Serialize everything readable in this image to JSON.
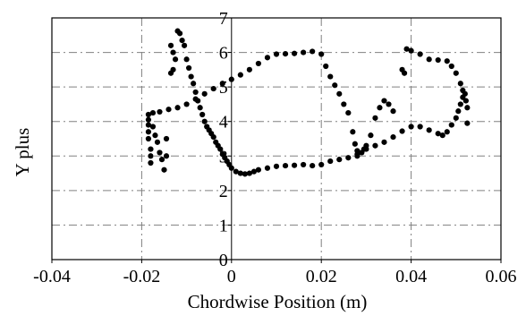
{
  "chart_data": {
    "type": "scatter",
    "title": "",
    "xlabel": "Chordwise Position (m)",
    "ylabel": "Y plus",
    "xlim": [
      -0.04,
      0.06
    ],
    "ylim": [
      0,
      7
    ],
    "x_ticks": [
      "-0.04",
      "-0.02",
      "0",
      "0.02",
      "0.04",
      "0.06"
    ],
    "y_ticks": [
      "0",
      "1",
      "2",
      "3",
      "4",
      "5",
      "6",
      "7"
    ],
    "grid": "dash-dot",
    "legend": "none",
    "marker_color": "#000000",
    "series": [
      {
        "values": [
          [
            -0.0185,
            4.2
          ],
          [
            -0.0175,
            4.25
          ],
          [
            -0.016,
            4.28
          ],
          [
            -0.014,
            4.35
          ],
          [
            -0.012,
            4.4
          ],
          [
            -0.01,
            4.5
          ],
          [
            -0.008,
            4.65
          ],
          [
            -0.006,
            4.8
          ],
          [
            -0.004,
            4.95
          ],
          [
            -0.002,
            5.1
          ],
          [
            0.0,
            5.22
          ],
          [
            0.002,
            5.35
          ],
          [
            0.004,
            5.5
          ],
          [
            0.006,
            5.68
          ],
          [
            0.008,
            5.85
          ],
          [
            0.01,
            5.95
          ],
          [
            0.012,
            5.96
          ],
          [
            0.014,
            5.97
          ],
          [
            0.016,
            6.0
          ],
          [
            0.018,
            6.03
          ],
          [
            0.02,
            5.95
          ],
          [
            0.021,
            5.6
          ],
          [
            0.022,
            5.3
          ],
          [
            0.023,
            5.05
          ],
          [
            0.024,
            4.8
          ],
          [
            0.025,
            4.5
          ],
          [
            0.026,
            4.25
          ],
          [
            0.027,
            3.7
          ],
          [
            0.0275,
            3.35
          ],
          [
            0.028,
            3.15
          ],
          [
            0.028,
            3.05
          ],
          [
            0.029,
            3.1
          ],
          [
            0.03,
            3.2
          ],
          [
            0.032,
            3.3
          ],
          [
            0.034,
            3.4
          ],
          [
            0.036,
            3.55
          ],
          [
            0.038,
            3.72
          ],
          [
            0.04,
            3.85
          ],
          [
            0.042,
            3.85
          ],
          [
            0.044,
            3.75
          ],
          [
            0.046,
            3.65
          ],
          [
            0.047,
            3.6
          ],
          [
            0.048,
            3.7
          ],
          [
            0.049,
            3.9
          ],
          [
            0.05,
            4.1
          ],
          [
            0.0505,
            4.3
          ],
          [
            0.051,
            4.5
          ],
          [
            0.0515,
            4.7
          ],
          [
            0.052,
            4.8
          ],
          [
            0.0522,
            4.6
          ],
          [
            0.0525,
            4.4
          ],
          [
            0.0525,
            3.95
          ],
          [
            0.0515,
            4.9
          ],
          [
            0.051,
            5.1
          ],
          [
            0.05,
            5.4
          ],
          [
            0.049,
            5.6
          ],
          [
            0.048,
            5.75
          ],
          [
            0.046,
            5.78
          ],
          [
            0.044,
            5.8
          ],
          [
            0.042,
            5.95
          ],
          [
            0.04,
            6.05
          ],
          [
            0.039,
            6.1
          ],
          [
            0.038,
            5.5
          ],
          [
            0.0385,
            5.4
          ],
          [
            0.036,
            4.3
          ],
          [
            0.035,
            4.5
          ],
          [
            0.034,
            4.6
          ],
          [
            0.033,
            4.4
          ],
          [
            0.032,
            4.1
          ],
          [
            0.031,
            3.6
          ],
          [
            0.03,
            3.3
          ],
          [
            0.0295,
            3.2
          ],
          [
            -0.012,
            6.62
          ],
          [
            -0.0115,
            6.55
          ],
          [
            -0.011,
            6.35
          ],
          [
            -0.0105,
            6.2
          ],
          [
            -0.0135,
            6.2
          ],
          [
            -0.013,
            6.0
          ],
          [
            -0.0125,
            5.8
          ],
          [
            -0.01,
            5.8
          ],
          [
            -0.0095,
            5.55
          ],
          [
            -0.009,
            5.3
          ],
          [
            -0.0085,
            5.1
          ],
          [
            -0.008,
            4.85
          ],
          [
            -0.0075,
            4.6
          ],
          [
            -0.007,
            4.4
          ],
          [
            -0.0065,
            4.2
          ],
          [
            -0.006,
            4.0
          ],
          [
            -0.0055,
            3.85
          ],
          [
            -0.005,
            3.75
          ],
          [
            -0.0045,
            3.65
          ],
          [
            -0.004,
            3.55
          ],
          [
            -0.0035,
            3.4
          ],
          [
            -0.003,
            3.3
          ],
          [
            -0.0025,
            3.2
          ],
          [
            -0.002,
            3.05
          ],
          [
            -0.0015,
            2.95
          ],
          [
            -0.001,
            2.85
          ],
          [
            -0.0005,
            2.75
          ],
          [
            0.0,
            2.65
          ],
          [
            0.001,
            2.55
          ],
          [
            0.002,
            2.5
          ],
          [
            0.003,
            2.48
          ],
          [
            0.004,
            2.5
          ],
          [
            0.005,
            2.55
          ],
          [
            0.006,
            2.6
          ],
          [
            0.008,
            2.65
          ],
          [
            0.01,
            2.7
          ],
          [
            0.012,
            2.72
          ],
          [
            0.014,
            2.73
          ],
          [
            0.016,
            2.75
          ],
          [
            0.018,
            2.72
          ],
          [
            0.02,
            2.75
          ],
          [
            0.022,
            2.85
          ],
          [
            0.024,
            2.9
          ],
          [
            0.026,
            2.95
          ],
          [
            0.028,
            3.0
          ],
          [
            -0.0185,
            3.5
          ],
          [
            -0.0185,
            3.7
          ],
          [
            -0.0185,
            3.9
          ],
          [
            -0.0185,
            4.05
          ],
          [
            -0.018,
            3.2
          ],
          [
            -0.018,
            3.0
          ],
          [
            -0.018,
            2.8
          ],
          [
            -0.0175,
            3.85
          ],
          [
            -0.017,
            3.6
          ],
          [
            -0.0165,
            3.4
          ],
          [
            -0.016,
            3.1
          ],
          [
            -0.0155,
            2.9
          ],
          [
            -0.015,
            2.6
          ],
          [
            -0.0145,
            3.5
          ],
          [
            -0.0145,
            3.0
          ],
          [
            -0.0135,
            5.4
          ],
          [
            -0.013,
            5.5
          ]
        ]
      }
    ]
  }
}
